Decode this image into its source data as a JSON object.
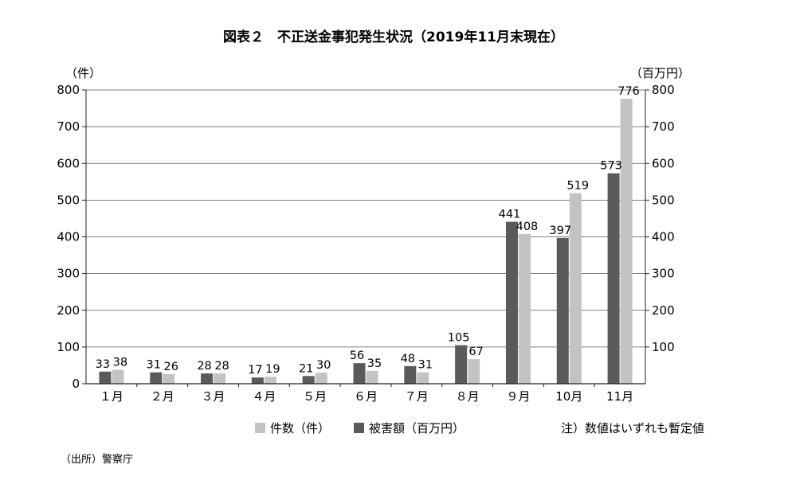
{
  "chart_data": {
    "type": "bar",
    "title": "図表２　不正送金事犯発生状況（2019年11月末現在）",
    "left_unit": "（件）",
    "right_unit": "（百万円）",
    "ylim": [
      0,
      800
    ],
    "left_ticks": [
      0,
      100,
      200,
      300,
      400,
      500,
      600,
      700,
      800
    ],
    "right_ticks": [
      100,
      200,
      300,
      400,
      500,
      600,
      700,
      800
    ],
    "categories": [
      "１月",
      "２月",
      "３月",
      "４月",
      "５月",
      "６月",
      "７月",
      "８月",
      "９月",
      "10月",
      "11月"
    ],
    "series": [
      {
        "name": "被害額（百万円）",
        "axis": "right",
        "color": "#5a5a5a",
        "values": [
          33,
          31,
          28,
          17,
          21,
          56,
          48,
          105,
          441,
          397,
          573
        ]
      },
      {
        "name": "件数（件）",
        "axis": "left",
        "color": "#c3c3c3",
        "values": [
          38,
          26,
          28,
          19,
          30,
          35,
          31,
          67,
          408,
          519,
          776
        ]
      }
    ],
    "legend_order": [
      1,
      0
    ],
    "note": "注）数値はいずれも暫定値",
    "source": "（出所）警察庁",
    "grid": true
  }
}
